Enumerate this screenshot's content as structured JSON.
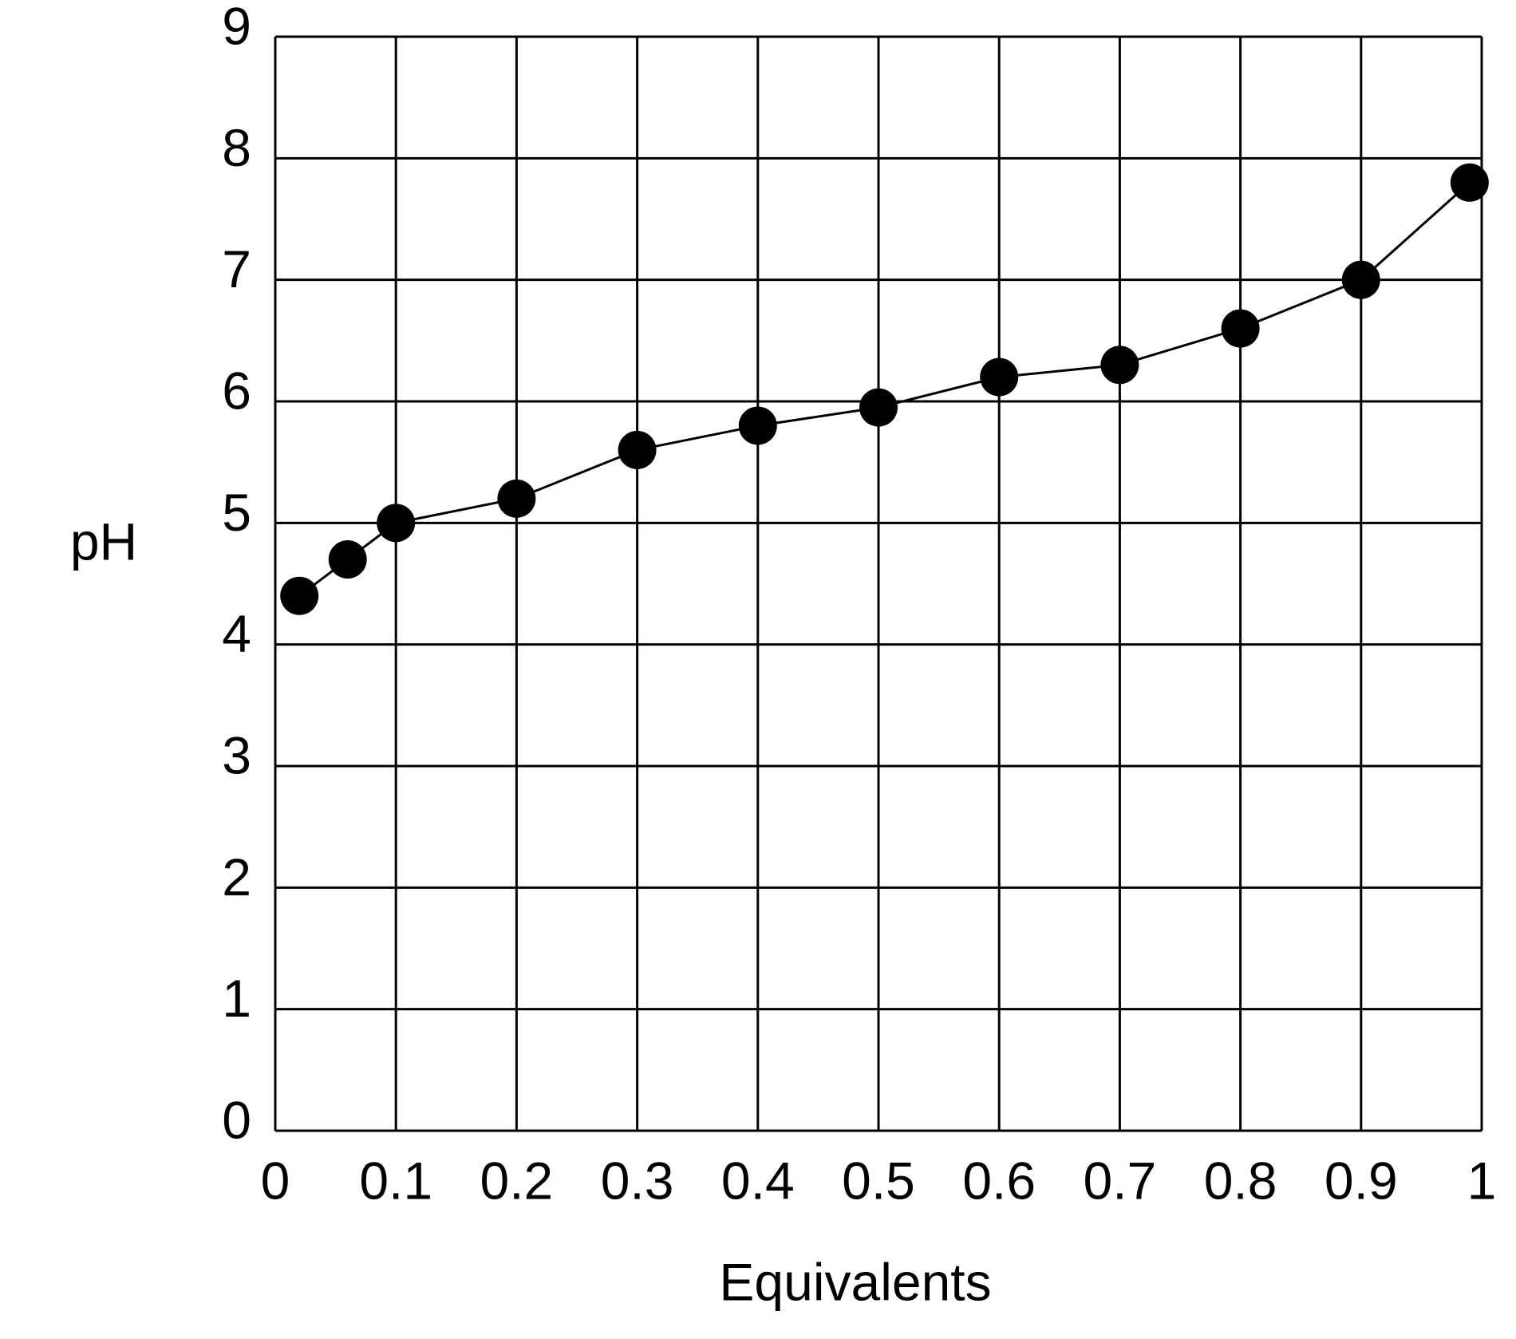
{
  "chart_data": {
    "type": "line",
    "x_label": "Equivalents",
    "y_label": "pH",
    "x": [
      0.02,
      0.06,
      0.1,
      0.2,
      0.3,
      0.4,
      0.5,
      0.6,
      0.7,
      0.8,
      0.9,
      0.99
    ],
    "series": [
      {
        "name": "pH",
        "color": "#000000",
        "values": [
          4.4,
          4.7,
          5.0,
          5.2,
          5.6,
          5.8,
          5.95,
          6.2,
          6.3,
          6.6,
          7.0,
          7.8
        ]
      }
    ],
    "xlim": [
      0,
      1
    ],
    "xticks": [
      0,
      0.1,
      0.2,
      0.3,
      0.4,
      0.5,
      0.6,
      0.7,
      0.8,
      0.9,
      1
    ],
    "ylim": [
      0,
      9
    ],
    "yticks": [
      0,
      1,
      2,
      3,
      4,
      5,
      6,
      7,
      8,
      9
    ],
    "grid": true
  }
}
